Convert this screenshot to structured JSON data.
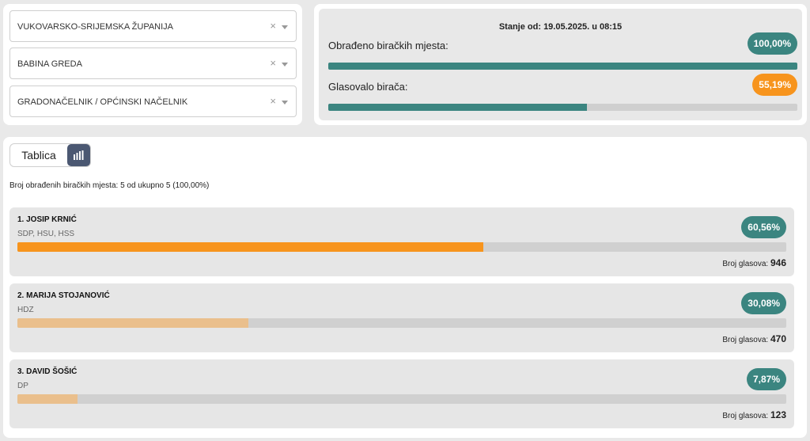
{
  "filters": {
    "county": "VUKOVARSKO-SRIJEMSKA ŽUPANIJA",
    "municipality": "BABINA GREDA",
    "race": "GRADONAČELNIK / OPĆINSKI NAČELNIK",
    "clear_symbol": "×"
  },
  "status": {
    "timestamp": "Stanje od: 19.05.2025. u 08:15",
    "processed": {
      "label": "Obrađeno biračkih mjesta:",
      "value_text": "100,00%",
      "value": 100.0,
      "color": "#3b8580"
    },
    "turnout": {
      "label": "Glasovalo birača:",
      "value_text": "55,19%",
      "value": 55.19,
      "color": "#f7941d"
    },
    "bar_color": "#3b8580"
  },
  "view": {
    "table_tab": "Tablica",
    "chart_tab_icon": "bar-chart-icon"
  },
  "processed_text": "Broj obrađenih biračkih mjesta: 5 od ukupno 5 (100,00%)",
  "candidates": [
    {
      "name": "1. JOSIP KRNIĆ",
      "party": "SDP, HSU, HSS",
      "pct_text": "60,56%",
      "pct": 60.56,
      "votes_label": "Broj glasova:",
      "votes": "946",
      "bar_color": "#f7941d"
    },
    {
      "name": "2. MARIJA STOJANOVIĆ",
      "party": "HDZ",
      "pct_text": "30,08%",
      "pct": 30.08,
      "votes_label": "Broj glasova:",
      "votes": "470",
      "bar_color": "#eabf8c"
    },
    {
      "name": "3. DAVID ŠOŠIĆ",
      "party": "DP",
      "pct_text": "7,87%",
      "pct": 7.87,
      "votes_label": "Broj glasova:",
      "votes": "123",
      "bar_color": "#eabf8c"
    }
  ],
  "colors": {
    "pill_teal": "#3b8580",
    "pill_orange": "#f7941d",
    "toggle_active": "#4b5872"
  }
}
